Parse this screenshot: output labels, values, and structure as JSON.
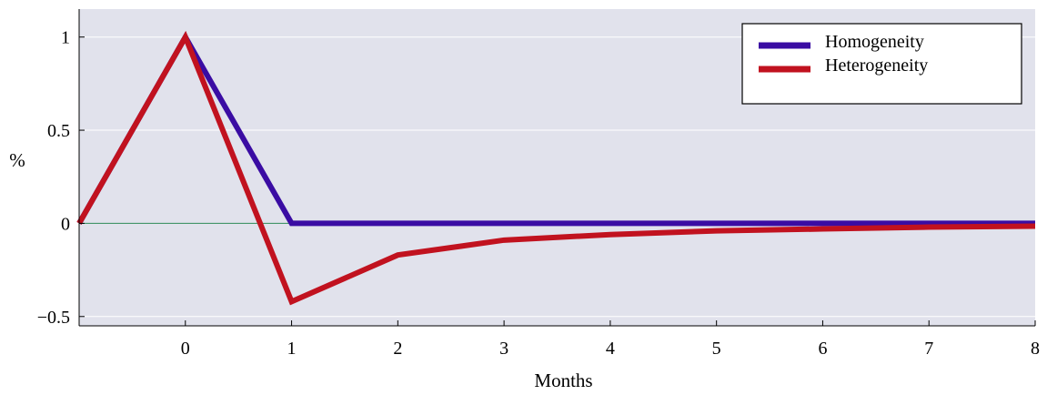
{
  "chart_data": {
    "type": "line",
    "xlabel": "Months",
    "ylabel": "%",
    "xlim": [
      -1,
      8
    ],
    "ylim": [
      -0.55,
      1.15
    ],
    "x_ticks": [
      0,
      1,
      2,
      3,
      4,
      5,
      6,
      7,
      8
    ],
    "x_tick_labels": [
      "0",
      "1",
      "2",
      "3",
      "4",
      "5",
      "6",
      "7",
      "8"
    ],
    "y_ticks": [
      1,
      0.5,
      0,
      -0.5
    ],
    "y_tick_labels": [
      "1",
      "0.5",
      "0",
      "−0.5"
    ],
    "grid": true,
    "zero_line": true,
    "legend_position": "top-right",
    "x": [
      -1,
      0,
      1,
      2,
      3,
      4,
      5,
      6,
      7,
      8
    ],
    "series": [
      {
        "name": "Homogeneity",
        "color": "#3a0ca3",
        "values": [
          0,
          1,
          0,
          0,
          0,
          0,
          0,
          0,
          0,
          0
        ]
      },
      {
        "name": "Heterogeneity",
        "color": "#c1121f",
        "values": [
          0,
          1,
          -0.42,
          -0.17,
          -0.09,
          -0.06,
          -0.04,
          -0.03,
          -0.02,
          -0.015
        ]
      }
    ]
  },
  "colors": {
    "plot_background": "#e1e2ec",
    "grid": "#ffffff",
    "zero_line": "#2e8b57"
  }
}
